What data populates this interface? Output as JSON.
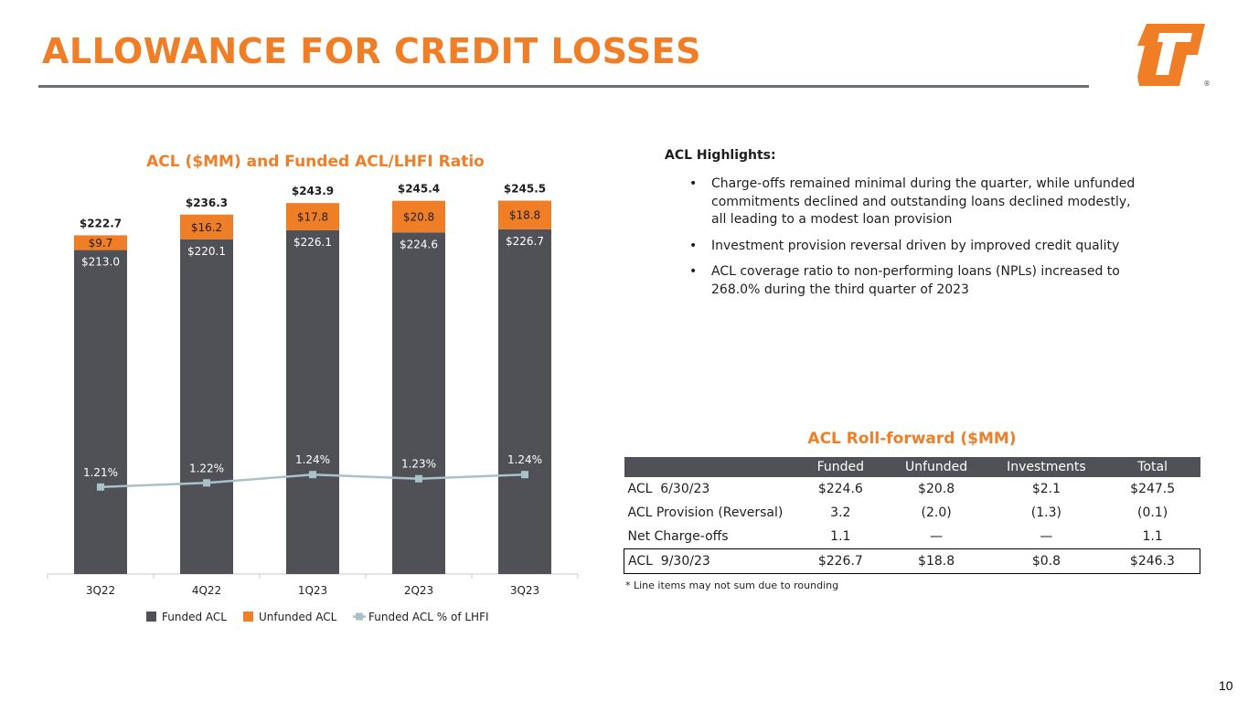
{
  "slide": {
    "title": "ALLOWANCE FOR CREDIT LOSSES",
    "page_number": "10",
    "logo": "company-logo"
  },
  "colors": {
    "accent": "#f07e26",
    "funded": "#4f5156",
    "unfunded": "#f07e26",
    "ratio_line": "#a9c1c8",
    "rule": "#6b6e73",
    "header_bg": "#4f5156"
  },
  "chart_data": {
    "type": "bar",
    "stacked": true,
    "title": "ACL ($MM) and Funded ACL/LHFI Ratio",
    "categories": [
      "3Q22",
      "4Q22",
      "1Q23",
      "2Q23",
      "3Q23"
    ],
    "series": [
      {
        "name": "Funded ACL",
        "type": "bar",
        "values": [
          213.0,
          220.1,
          226.1,
          224.6,
          226.7
        ],
        "labels": [
          "$213.0",
          "$220.1",
          "$226.1",
          "$224.6",
          "$226.7"
        ]
      },
      {
        "name": "Unfunded ACL",
        "type": "bar",
        "values": [
          9.7,
          16.2,
          17.8,
          20.8,
          18.8
        ],
        "labels": [
          "$9.7",
          "$16.2",
          "$17.8",
          "$20.8",
          "$18.8"
        ]
      },
      {
        "name": "Funded ACL % of LHFI",
        "type": "line",
        "values": [
          1.21,
          1.22,
          1.24,
          1.23,
          1.24
        ],
        "labels": [
          "1.21%",
          "1.22%",
          "1.24%",
          "1.23%",
          "1.24%"
        ]
      }
    ],
    "totals": [
      222.7,
      236.3,
      243.9,
      245.4,
      245.5
    ],
    "total_labels": [
      "$222.7",
      "$236.3",
      "$243.9",
      "$245.4",
      "$245.5"
    ],
    "ylim": [
      0,
      250
    ],
    "legend": {
      "position": "bottom",
      "items": [
        "Funded ACL",
        "Unfunded ACL",
        "Funded ACL % of LHFI"
      ]
    },
    "grid": false
  },
  "highlights": {
    "heading": "ACL Highlights:",
    "items": [
      "Charge-offs remained minimal during the quarter, while unfunded commitments declined and outstanding loans declined modestly, all leading to a modest loan provision",
      "Investment provision reversal driven by improved credit quality",
      "ACL coverage ratio to non-performing loans (NPLs) increased to 268.0% during the third quarter of 2023"
    ]
  },
  "rollforward": {
    "title": "ACL Roll-forward ($MM)",
    "columns": [
      "",
      "Funded",
      "Unfunded",
      "Investments",
      "Total"
    ],
    "rows": [
      [
        "ACL  6/30/23",
        "$224.6",
        "$20.8",
        "$2.1",
        "$247.5"
      ],
      [
        "ACL Provision (Reversal)",
        "3.2",
        "(2.0)",
        "(1.3)",
        "(0.1)"
      ],
      [
        "Net Charge-offs",
        "1.1",
        "—",
        "—",
        "1.1"
      ],
      [
        "ACL  9/30/23",
        "$226.7",
        "$18.8",
        "$0.8",
        "$246.3"
      ]
    ],
    "footnote": "* Line items may not sum due to rounding"
  }
}
